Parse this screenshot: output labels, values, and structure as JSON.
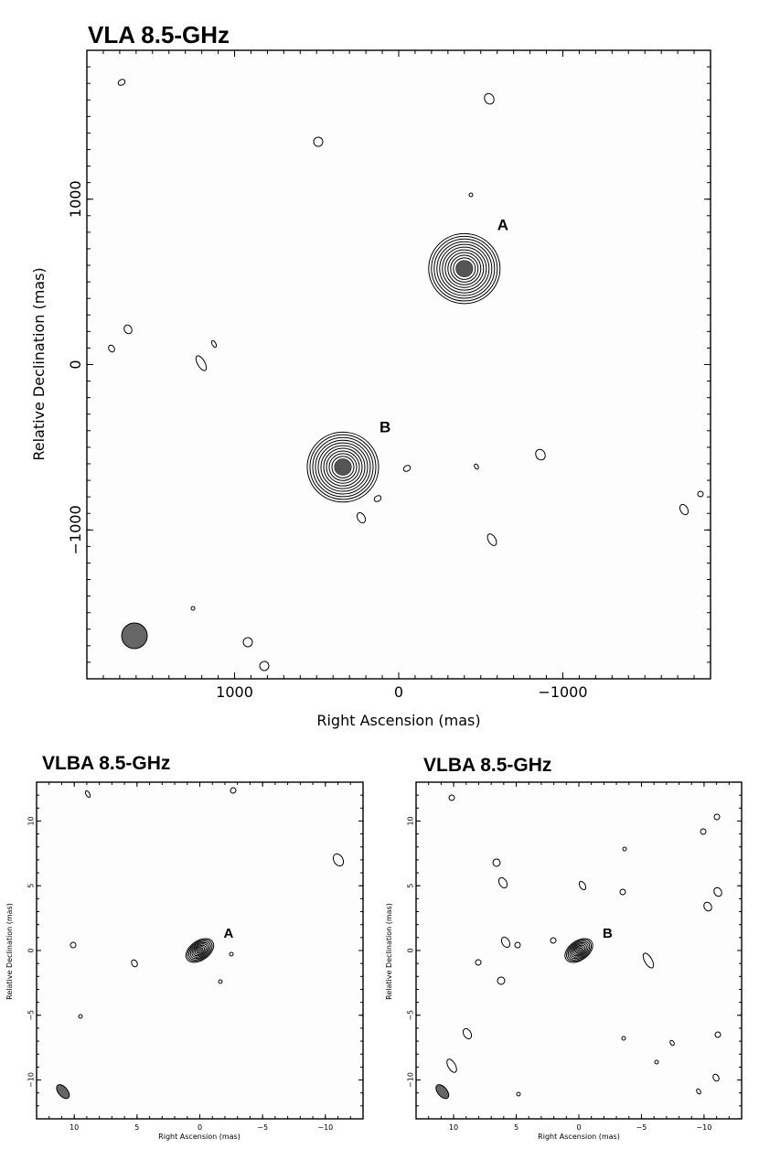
{
  "chart_data": [
    {
      "type": "contour",
      "title": "VLA 8.5-GHz",
      "xlabel": "Right Ascension   (mas)",
      "ylabel": "Relative Declination   (mas)",
      "xlim": [
        1900,
        -1900
      ],
      "ylim": [
        -1900,
        1900
      ],
      "x_ticks": [
        1000,
        0,
        -1000
      ],
      "y_ticks": [
        1000,
        0,
        -1000
      ],
      "x_tick_labels": [
        "1000",
        "0",
        "−1000"
      ],
      "y_tick_labels": [
        "1000",
        "0",
        "−1000"
      ],
      "x_axis_reversed": true,
      "sources": [
        {
          "label": "A",
          "x": -400,
          "y": 580
        },
        {
          "label": "B",
          "x": 340,
          "y": -620
        }
      ],
      "beam": {
        "x": 1610,
        "y": -1640
      }
    },
    {
      "type": "contour",
      "title": "VLBA 8.5-GHz",
      "xlabel": "Right Ascension  (mas)",
      "ylabel": "Relative Declination  (mas)",
      "xlim": [
        13,
        -13
      ],
      "ylim": [
        -13,
        13
      ],
      "x_ticks": [
        10,
        5,
        0,
        -5,
        -10
      ],
      "y_ticks": [
        10,
        5,
        0,
        -5,
        -10
      ],
      "x_tick_labels": [
        "10",
        "5",
        "0",
        "−5",
        "−10"
      ],
      "y_tick_labels": [
        "10",
        "5",
        "0",
        "−5",
        "−10"
      ],
      "x_axis_reversed": true,
      "sources": [
        {
          "label": "A",
          "x": 0,
          "y": 0
        }
      ],
      "beam": {
        "x": 10.9,
        "y": -10.9
      }
    },
    {
      "type": "contour",
      "title": "VLBA 8.5-GHz",
      "xlabel": "Right Ascension  (mas)",
      "ylabel": "Relative Declination  (mas)",
      "xlim": [
        13,
        -13
      ],
      "ylim": [
        -13,
        13
      ],
      "x_ticks": [
        10,
        5,
        0,
        -5,
        -10
      ],
      "y_ticks": [
        10,
        5,
        0,
        -5,
        -10
      ],
      "x_tick_labels": [
        "10",
        "5",
        "0",
        "−5",
        "−10"
      ],
      "y_tick_labels": [
        "10",
        "5",
        "0",
        "−5",
        "−10"
      ],
      "x_axis_reversed": true,
      "sources": [
        {
          "label": "B",
          "x": 0,
          "y": 0
        }
      ],
      "beam": {
        "x": 10.9,
        "y": -10.9
      }
    }
  ]
}
